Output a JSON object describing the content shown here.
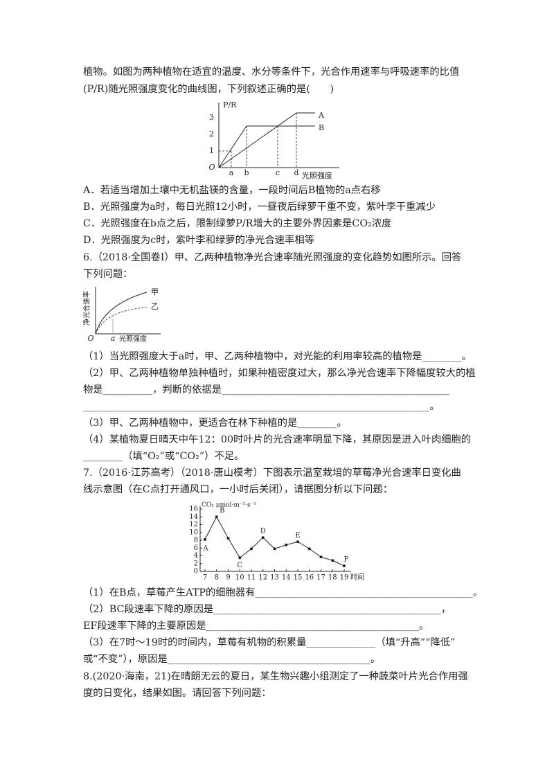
{
  "intro": [
    "植物。如图为两种植物在适宜的温度、水分等条件下，光合作用速率与呼吸速率的比值",
    "(P/R)随光照强度变化的曲线图，下列叙述正确的是(　　)"
  ],
  "figure1": {
    "y_label": "P/R",
    "origin": "O",
    "yticks": [
      1,
      2,
      3
    ],
    "x_marks": [
      "a",
      "b",
      "c",
      "d"
    ],
    "x_label": "光照强度",
    "curves": [
      "A",
      "B"
    ]
  },
  "options": [
    "A．若适当增加土壤中无机盐镁的含量，一段时间后B植物的a点右移",
    "B．光照强度为a时，每日光照12小时，一昼夜后绿萝干重不变，紫叶李干重减少",
    "C．光照强度在b点之后，限制绿萝P/R增大的主要外界因素是CO₂浓度",
    "D．光照强度为c时，紫叶李和绿萝的净光合速率相等"
  ],
  "q6": {
    "stem": [
      "6.（2018·全国卷Ⅰ）甲、乙两种植物净光合速率随光照强度的变化趋势如图所示。回答",
      "下列问题："
    ],
    "figure": {
      "y_label": "净光合速率",
      "origin": "O",
      "x_mark": "a",
      "x_label": "光照强度",
      "curves": [
        "甲",
        "乙"
      ]
    },
    "items": [
      "（1）当光照强度大于a时，甲、乙两种植物中，对光能的利用率较高的植物是________。",
      "（2）甲、乙两种植物单独种植时，如果种植密度过大，那么净光合速率下降幅度较大的植",
      "物是__________，判断的依据是______________________________________________",
      "______________________________________________________________________。",
      "（3）甲、乙两种植物中，更适合在林下种植的是________。",
      "（4）某植物夏日晴天中午12：00时叶片的光合速率明显下降，其原因是进入叶肉细胞的",
      "________（填“O₂”或“CO₂”）不足。"
    ]
  },
  "q7": {
    "stem": [
      "7.（2016·江苏高考）（2018·唐山模考）下图表示温室栽培的草莓净光合速率日变化曲",
      "线示意图（在C点打开通风口，一小时后关闭），请据图分析以下问题："
    ],
    "figure": {
      "y_label": "CO₂ μmol·m⁻²·s⁻¹",
      "x_label": "时间",
      "xticks": [
        7,
        8,
        9,
        10,
        11,
        12,
        13,
        14,
        15,
        16,
        17,
        18,
        19
      ],
      "ylim": [
        0,
        16
      ],
      "yticks": [
        0,
        2,
        4,
        6,
        8,
        10,
        12,
        14,
        16
      ],
      "values": [
        8.2,
        14,
        8.5,
        3.5,
        5.8,
        8.7,
        5.8,
        6.8,
        7.6,
        5.8,
        3.7,
        2.8,
        1.4
      ],
      "point_labels": [
        "A",
        "B",
        null,
        "C",
        null,
        "D",
        null,
        null,
        "E",
        null,
        null,
        null,
        "F"
      ]
    },
    "items": [
      "（1）在B点，草莓产生ATP的细胞器有____________________________________________。",
      "（2）BC段速率下降的原因是______________________________________________，",
      "EF段速率下降的主要原因是___________________________________________。",
      "（3）在7时～19时的时间内，草莓有机物的积累量______________（填“升高”“降低”",
      "或“不变”），原因是_________________________________________。"
    ]
  },
  "q8": [
    "8.(2020·海南，21)在晴朗无云的夏日，某生物兴趣小组测定了一种蔬菜叶片光合作用强",
    "度的日变化，结果如图。请回答下列问题："
  ]
}
